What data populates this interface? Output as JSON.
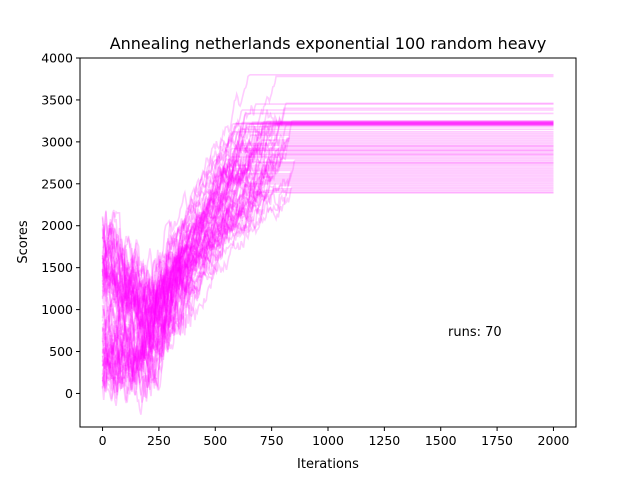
{
  "chart_data": {
    "type": "line",
    "title": "Annealing netherlands exponential 100 random heavy",
    "xlabel": "Iterations",
    "ylabel": "Scores",
    "xlim": [
      -100,
      2100
    ],
    "ylim": [
      -400,
      4000
    ],
    "x_ticks": [
      0,
      250,
      500,
      750,
      1000,
      1250,
      1500,
      1750,
      2000
    ],
    "y_ticks": [
      0,
      500,
      1000,
      1500,
      2000,
      2500,
      3000,
      3500,
      4000
    ],
    "x_tick_labels": [
      "0",
      "250",
      "500",
      "750",
      "1000",
      "1250",
      "1500",
      "1750",
      "2000"
    ],
    "y_tick_labels": [
      "0",
      "500",
      "1000",
      "1500",
      "2000",
      "2500",
      "3000",
      "3500",
      "4000"
    ],
    "series_color": "#ff00ff",
    "series_opacity": 0.2,
    "legend": "none",
    "grid": false,
    "annotation": "runs: 70",
    "final_scores": [
      3800,
      3780,
      3460,
      3450,
      3400,
      3380,
      3340,
      3250,
      3245,
      3240,
      3235,
      3230,
      3225,
      3220,
      3215,
      3210,
      3200,
      3195,
      3180,
      3150,
      3120,
      3100,
      3080,
      3060,
      3040,
      3020,
      3000,
      2980,
      2960,
      2940,
      2920,
      2900,
      2880,
      2860,
      2840,
      2820,
      2800,
      2780,
      2760,
      2750,
      2740,
      2720,
      2700,
      2680,
      2660,
      2640,
      2620,
      2600,
      2580,
      2560,
      2540,
      2520,
      2500,
      2480,
      2460,
      2440,
      2420,
      2400,
      2390,
      3235,
      3230,
      3225,
      3220,
      3215,
      3210,
      3205,
      3200,
      2950,
      2900,
      2850
    ]
  }
}
